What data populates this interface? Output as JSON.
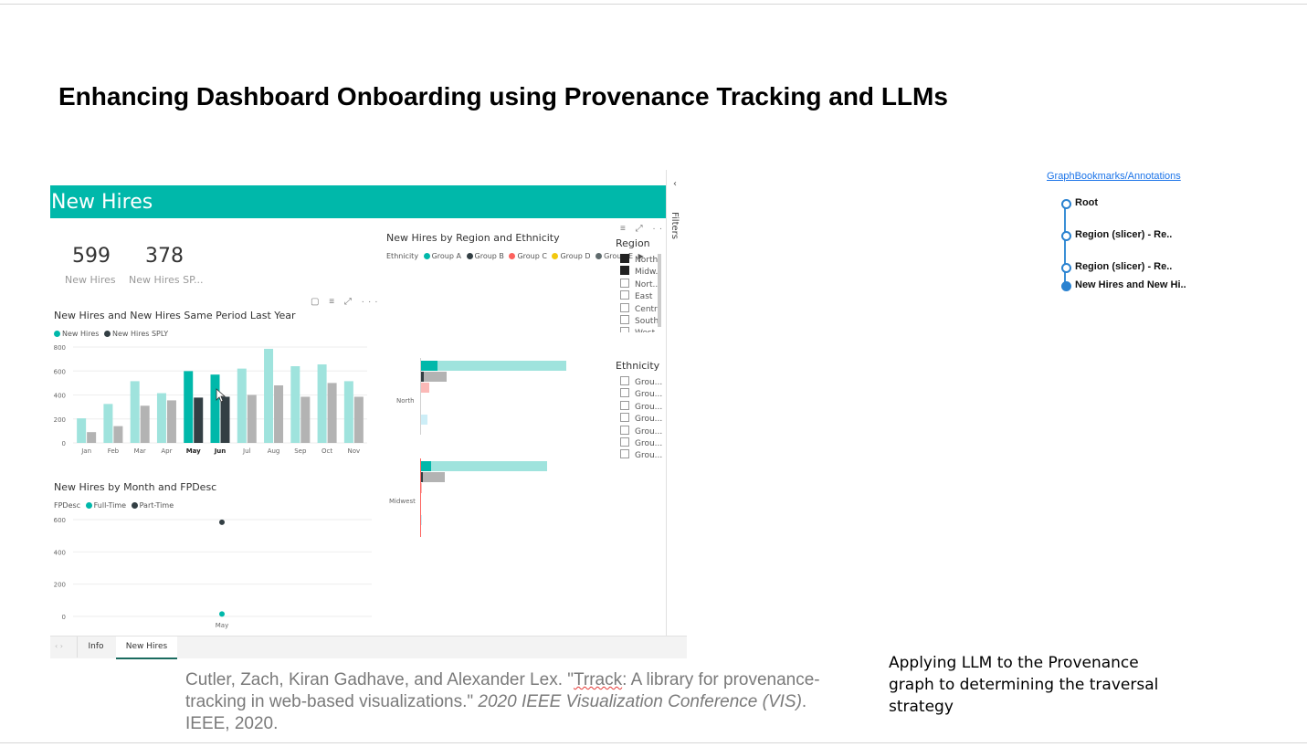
{
  "slide": {
    "title": "Enhancing Dashboard Onboarding using Provenance Tracking and LLMs",
    "caption": "Applying LLM to the Provenance graph to determining the traversal strategy",
    "citation": {
      "prefix": "Cutler, Zach, Kiran Gadhave, and Alexander Lex. \"",
      "misspelled": "Trrack",
      "middle": ": A library for provenance-tracking in web-based visualizations.\" ",
      "venue": "2020 IEEE Visualization Conference (VIS)",
      "suffix": ". IEEE, 2020."
    }
  },
  "dashboard": {
    "banner": "New Hires",
    "kpis": [
      {
        "value": "599",
        "label": "New Hires"
      },
      {
        "value": "378",
        "label": "New Hires SP..."
      }
    ],
    "filters_label": "Filters",
    "tabs": [
      {
        "label": "Info"
      },
      {
        "label": "New Hires"
      }
    ],
    "active_tab": "New Hires",
    "colors": {
      "teal": "#00b8aa",
      "teal_light": "#9fe3dd",
      "dark": "#333f44",
      "gray": "#b3b3b3",
      "group_c": "#fd625e",
      "group_d": "#f2c80f",
      "group_e": "#5f6b6d"
    }
  },
  "chart_data": [
    {
      "type": "bar",
      "title": "New Hires and New Hires Same Period Last Year",
      "categories": [
        "Jan",
        "Feb",
        "Mar",
        "Apr",
        "May",
        "Jun",
        "Jul",
        "Aug",
        "Sep",
        "Oct",
        "Nov"
      ],
      "highlighted": [
        "May",
        "Jun"
      ],
      "series": [
        {
          "name": "New Hires",
          "values": [
            205,
            325,
            515,
            415,
            599,
            570,
            620,
            785,
            640,
            655,
            515
          ]
        },
        {
          "name": "New Hires SPLY",
          "values": [
            90,
            140,
            310,
            355,
            378,
            385,
            400,
            480,
            385,
            500,
            385
          ]
        }
      ],
      "yticks": [
        0,
        200,
        400,
        600,
        800
      ],
      "ylim": [
        0,
        800
      ]
    },
    {
      "type": "scatter",
      "title": "New Hires by Month and FPDesc",
      "legend_title": "FPDesc",
      "categories": [
        "May"
      ],
      "series": [
        {
          "name": "Full-Time",
          "values": [
            15
          ]
        },
        {
          "name": "Part-Time",
          "values": [
            584
          ]
        }
      ],
      "yticks": [
        0,
        200,
        400,
        600
      ],
      "ylim": [
        0,
        600
      ]
    },
    {
      "type": "bar",
      "title": "New Hires by Region and Ethnicity",
      "legend_title": "Ethnicity",
      "legend": [
        "Group A",
        "Group B",
        "Group C",
        "Group D",
        "Group E"
      ],
      "categories": [
        "North",
        "Midwest"
      ]
    }
  ],
  "slicers": {
    "region": {
      "title": "Region",
      "items": [
        {
          "label": "North",
          "checked": true
        },
        {
          "label": "Midw...",
          "checked": true
        },
        {
          "label": "Nort...",
          "checked": false
        },
        {
          "label": "East",
          "checked": false
        },
        {
          "label": "Centra",
          "checked": false
        },
        {
          "label": "South",
          "checked": false
        },
        {
          "label": "West",
          "checked": false
        }
      ]
    },
    "ethnicity": {
      "title": "Ethnicity",
      "items": [
        {
          "label": "Grou..."
        },
        {
          "label": "Grou..."
        },
        {
          "label": "Grou..."
        },
        {
          "label": "Grou..."
        },
        {
          "label": "Grou..."
        },
        {
          "label": "Grou..."
        },
        {
          "label": "Grou..."
        }
      ]
    }
  },
  "provenance": {
    "link": "GraphBookmarks/Annotations",
    "nodes": [
      {
        "label": "Root",
        "current": false
      },
      {
        "label": "Region (slicer) - Re..",
        "current": false
      },
      {
        "label": "Region (slicer) - Re..",
        "current": false
      },
      {
        "label": "New Hires and New Hi..",
        "current": true
      }
    ]
  }
}
